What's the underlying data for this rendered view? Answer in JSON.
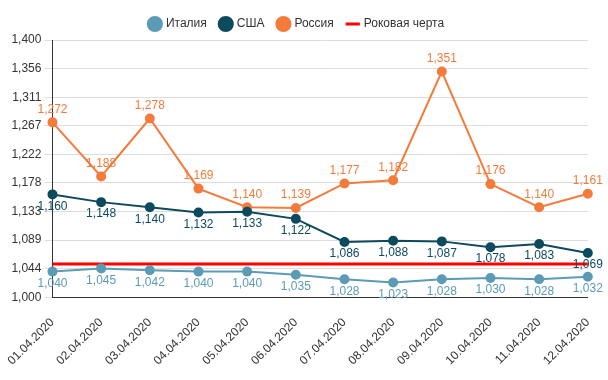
{
  "chart_data": {
    "type": "line",
    "categories": [
      "01.04.2020",
      "02.04.2020",
      "03.04.2020",
      "04.04.2020",
      "05.04.2020",
      "06.04.2020",
      "07.04.2020",
      "08.04.2020",
      "09.04.2020",
      "10.04.2020",
      "11.04.2020",
      "12.04.2020"
    ],
    "ylim": [
      1.0,
      1.4
    ],
    "yticks": [
      {
        "value": 1.0,
        "label": "1,000"
      },
      {
        "value": 1.044444,
        "label": "1,044"
      },
      {
        "value": 1.088889,
        "label": "1,089"
      },
      {
        "value": 1.133333,
        "label": "1,133"
      },
      {
        "value": 1.177778,
        "label": "1,178"
      },
      {
        "value": 1.222222,
        "label": "1,222"
      },
      {
        "value": 1.266667,
        "label": "1,267"
      },
      {
        "value": 1.311111,
        "label": "1,311"
      },
      {
        "value": 1.355556,
        "label": "1,356"
      },
      {
        "value": 1.4,
        "label": "1,400"
      }
    ],
    "grid": true,
    "legend": "top",
    "series": [
      {
        "name": "Италия",
        "color": "#5b9bb5",
        "marker": "circle",
        "line_style": "solid",
        "data_labels": true,
        "values": [
          1.04,
          1.045,
          1.042,
          1.04,
          1.04,
          1.035,
          1.028,
          1.023,
          1.028,
          1.03,
          1.028,
          1.032
        ],
        "value_labels": [
          "1,040",
          "1,045",
          "1,042",
          "1,040",
          "1,040",
          "1,035",
          "1,028",
          "1,023",
          "1,028",
          "1,030",
          "1,028",
          "1,032"
        ]
      },
      {
        "name": "США",
        "color": "#0d4a5e",
        "marker": "circle",
        "line_style": "solid",
        "data_labels": true,
        "values": [
          1.16,
          1.148,
          1.14,
          1.132,
          1.133,
          1.122,
          1.086,
          1.088,
          1.087,
          1.078,
          1.083,
          1.069
        ],
        "value_labels": [
          "1,160",
          "1,148",
          "1,140",
          "1,132",
          "1,133",
          "1,122",
          "1,086",
          "1,088",
          "1,087",
          "1,078",
          "1,083",
          "1,069"
        ]
      },
      {
        "name": "Россия",
        "color": "#f47b3b",
        "marker": "circle",
        "line_style": "solid",
        "data_labels": true,
        "values": [
          1.272,
          1.188,
          1.278,
          1.169,
          1.14,
          1.139,
          1.177,
          1.182,
          1.351,
          1.176,
          1.14,
          1.161
        ],
        "value_labels": [
          "1,272",
          "1,188",
          "1,278",
          "1,169",
          "1,140",
          "1,139",
          "1,177",
          "1,182",
          "1,351",
          "1,176",
          "1,140",
          "1,161"
        ]
      },
      {
        "name": "Роковая черта",
        "color": "#ff0000",
        "marker": "none",
        "line_style": "solid",
        "data_labels": false,
        "values": [
          1.052,
          1.052,
          1.052,
          1.052,
          1.052,
          1.052,
          1.052,
          1.052,
          1.052,
          1.052,
          1.052,
          1.052
        ]
      }
    ]
  }
}
